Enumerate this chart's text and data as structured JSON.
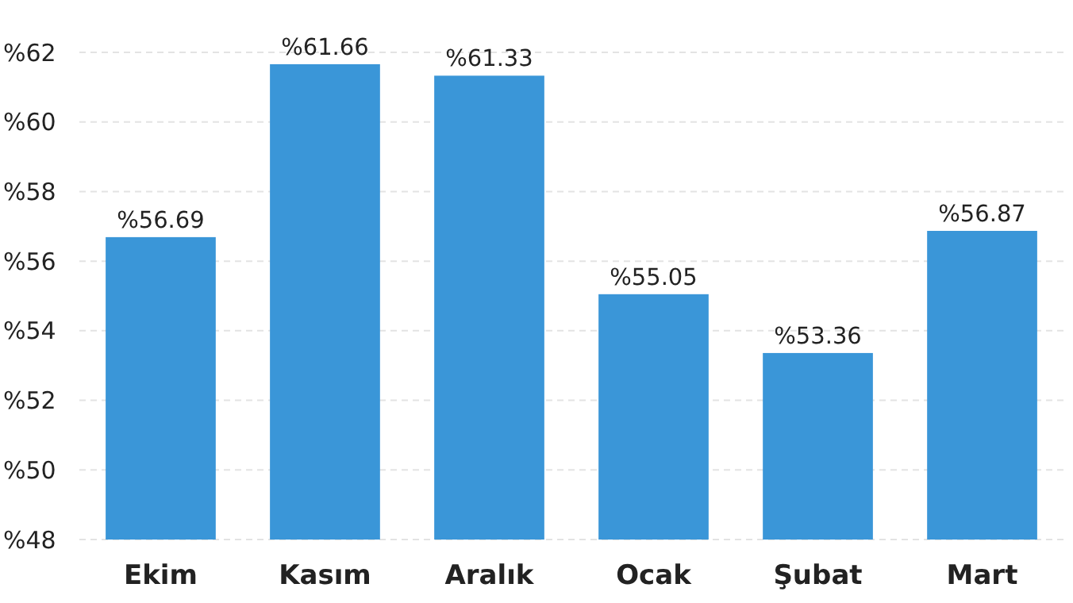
{
  "chart_data": {
    "type": "bar",
    "categories": [
      "Ekim",
      "Kasım",
      "Aralık",
      "Ocak",
      "Şubat",
      "Mart"
    ],
    "values": [
      56.69,
      61.66,
      61.33,
      55.05,
      53.36,
      56.87
    ],
    "value_labels": [
      "%56.69",
      "%61.66",
      "%61.33",
      "%55.05",
      "%53.36",
      "%56.87"
    ],
    "color": "#3a96d8",
    "ylim": [
      48,
      62
    ],
    "yticks": [
      {
        "value": 48,
        "label": "%48"
      },
      {
        "value": 50,
        "label": "%50"
      },
      {
        "value": 52,
        "label": "%52"
      },
      {
        "value": 54,
        "label": "%54"
      },
      {
        "value": 56,
        "label": "%56"
      },
      {
        "value": 58,
        "label": "%58"
      },
      {
        "value": 60,
        "label": "%60"
      },
      {
        "value": 62,
        "label": "%62"
      }
    ],
    "grid": "y"
  }
}
